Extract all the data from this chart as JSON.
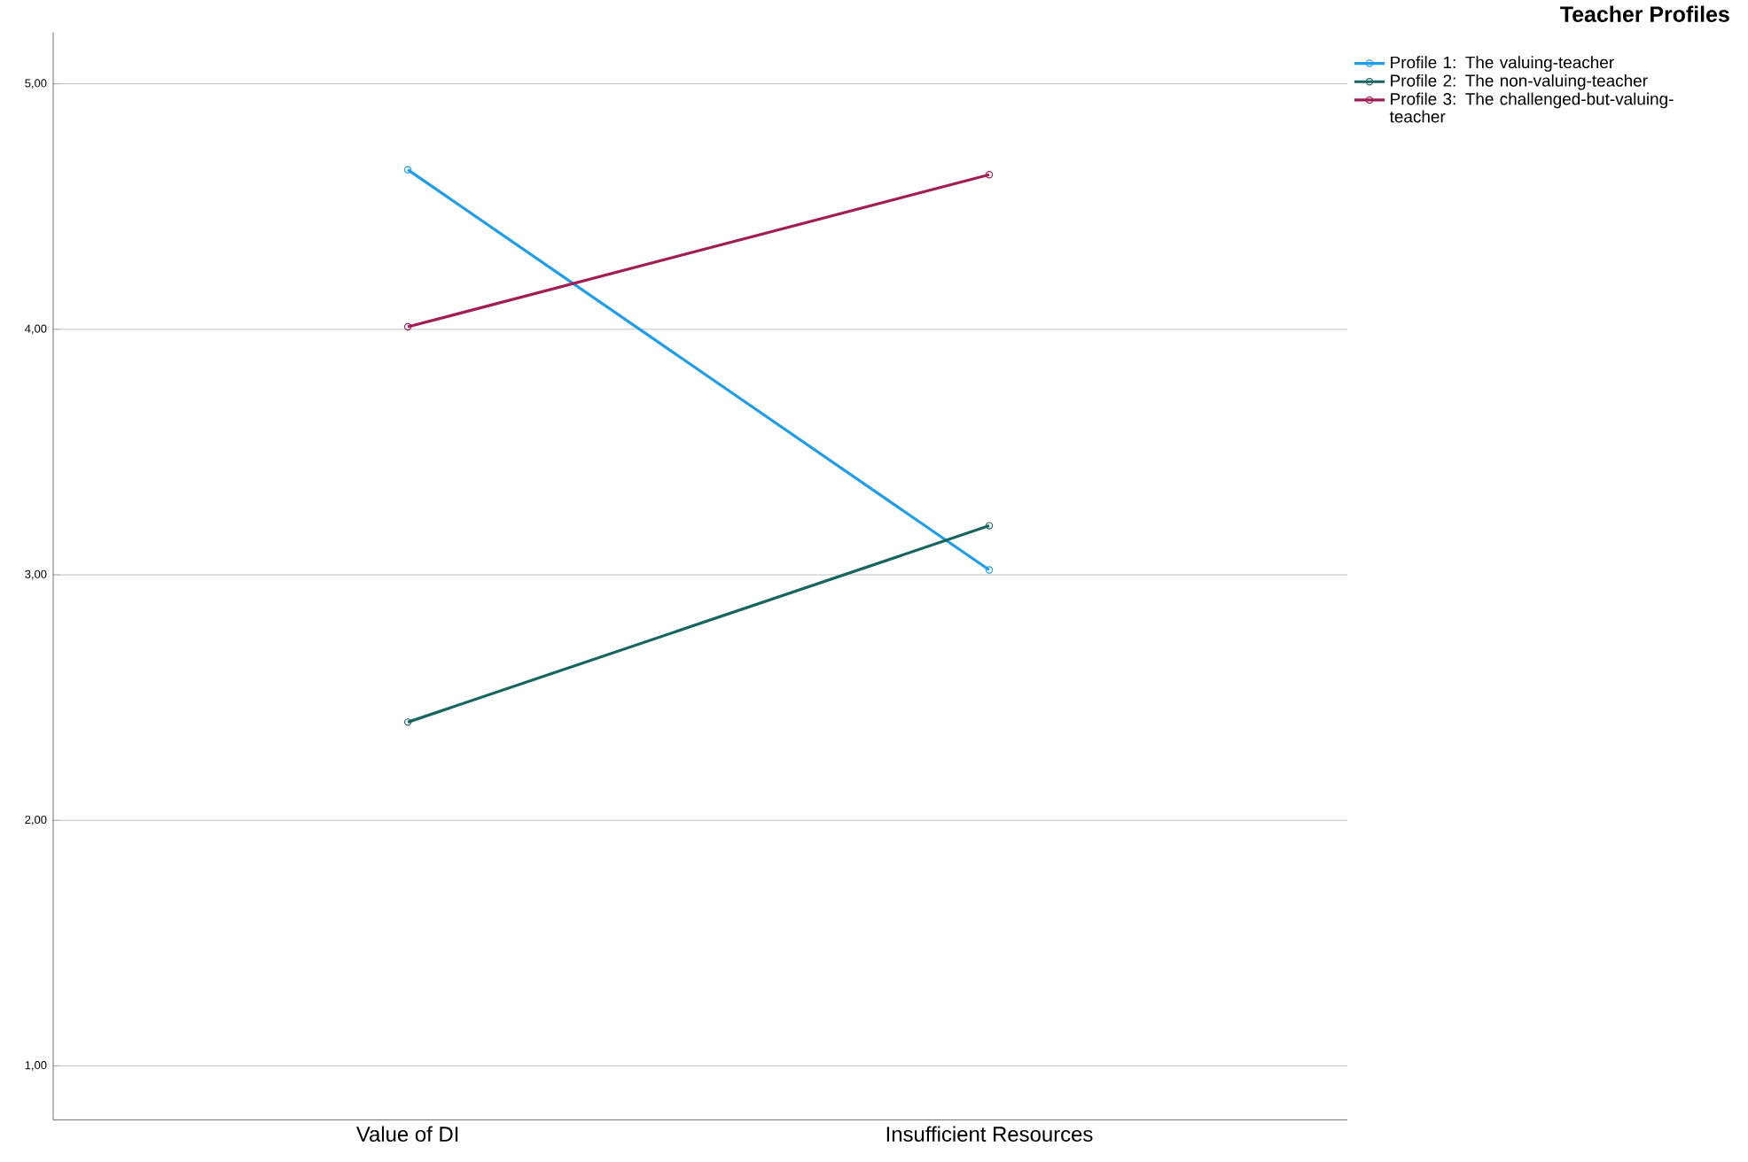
{
  "chart_data": {
    "type": "line",
    "legend_title": "Teacher Profiles",
    "categories": [
      "Value of DI",
      "Insufficient Resources"
    ],
    "series": [
      {
        "name": "Profile 1: The valuing-teacher",
        "color": "#1f9de8",
        "values": [
          4.65,
          3.02
        ]
      },
      {
        "name": "Profile 2: The non-valuing-teacher",
        "color": "#16655f",
        "values": [
          2.4,
          3.2
        ]
      },
      {
        "name": "Profile 3: The challenged-but-valuing-teacher",
        "color": "#a11d54",
        "values": [
          4.01,
          4.63
        ]
      }
    ],
    "ylim": [
      0.78,
      5.21
    ],
    "yticks": [
      {
        "value": 1,
        "label": "1,00"
      },
      {
        "value": 2,
        "label": "2,00"
      },
      {
        "value": 3,
        "label": "3,00"
      },
      {
        "value": 4,
        "label": "4,00"
      },
      {
        "value": 5,
        "label": "5,00"
      }
    ],
    "grid": "y",
    "legend": "top right",
    "marker": "circle",
    "line_style": "solid"
  }
}
